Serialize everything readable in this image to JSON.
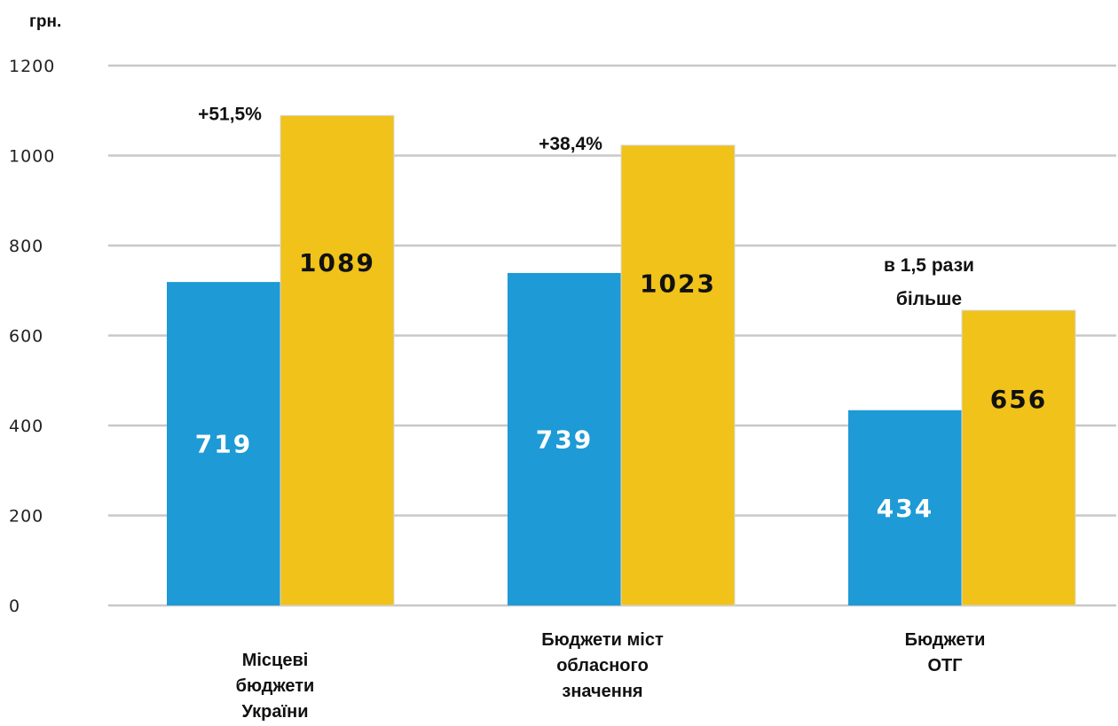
{
  "chart_data": {
    "type": "bar",
    "unit_label": "грн.",
    "categories": [
      [
        "Місцеві",
        "бюджети",
        "України"
      ],
      [
        "Бюджети  міст",
        "обласного",
        "значення"
      ],
      [
        "Бюджети",
        "ОТГ"
      ]
    ],
    "series": [
      {
        "values": [
          719,
          739,
          434
        ],
        "color": "#1e9ad6"
      },
      {
        "values": [
          1089,
          1023,
          656
        ],
        "color": "#f0c21a"
      }
    ],
    "ylim": [
      0,
      1200
    ],
    "yticks": [
      0,
      200,
      400,
      600,
      800,
      1000,
      1200
    ],
    "grid": true,
    "annotations": [
      {
        "category": 0,
        "lines": [
          "+51,5%"
        ]
      },
      {
        "category": 1,
        "lines": [
          "+38,4%"
        ]
      },
      {
        "category": 2,
        "lines": [
          "в 1,5 рази",
          "більше"
        ]
      }
    ]
  }
}
